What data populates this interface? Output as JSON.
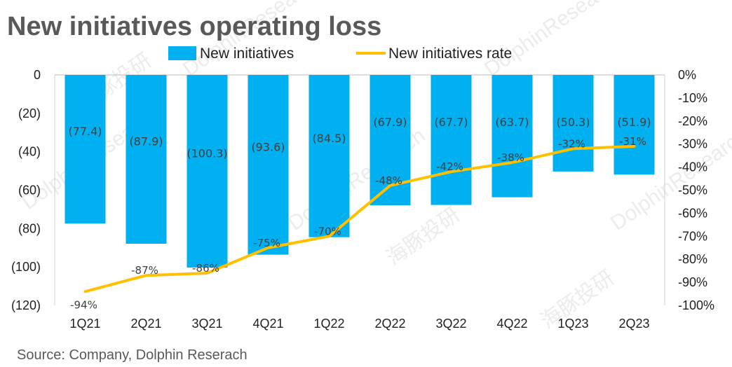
{
  "chart_data": {
    "type": "bar",
    "title": "New initiatives operating loss",
    "categories": [
      "1Q21",
      "2Q21",
      "3Q21",
      "4Q21",
      "1Q22",
      "2Q22",
      "3Q22",
      "4Q22",
      "1Q23",
      "2Q23"
    ],
    "series": [
      {
        "name": "New initiatives",
        "type": "bar",
        "axis": "left",
        "color": "#00b0f0",
        "values": [
          77.4,
          87.9,
          100.3,
          93.6,
          84.5,
          67.9,
          67.7,
          63.7,
          50.3,
          51.9
        ],
        "labels": [
          "(77.4)",
          "(87.9)",
          "(100.3)",
          "(93.6)",
          "(84.5)",
          "(67.9)",
          "(67.7)",
          "(63.7)",
          "(50.3)",
          "(51.9)"
        ]
      },
      {
        "name": "New initiatives rate",
        "type": "line",
        "axis": "right",
        "color": "#ffc000",
        "values": [
          -94,
          -87,
          -86,
          -75,
          -70,
          -48,
          -42,
          -38,
          -32,
          -31
        ],
        "labels": [
          "-94%",
          "-87%",
          "-86%",
          "-75%",
          "-70%",
          "-48%",
          "-42%",
          "-38%",
          "-32%",
          "-31%"
        ]
      }
    ],
    "y_left": {
      "ticks": [
        0,
        20,
        40,
        60,
        80,
        100,
        120
      ],
      "tick_labels": [
        "0",
        "(20)",
        "(40)",
        "(60)",
        "(80)",
        "(100)",
        "(120)"
      ],
      "ylim": [
        0,
        120
      ],
      "inverted": true
    },
    "y_right": {
      "ticks": [
        0,
        -10,
        -20,
        -30,
        -40,
        -50,
        -60,
        -70,
        -80,
        -90,
        -100
      ],
      "tick_labels": [
        "0%",
        "-10%",
        "-20%",
        "-30%",
        "-40%",
        "-50%",
        "-60%",
        "-70%",
        "-80%",
        "-90%",
        "-100%"
      ],
      "ylim": [
        -100,
        0
      ]
    },
    "legend": {
      "placement": "top-center"
    },
    "grid": false,
    "source": "Source: Company,  Dolphin Reserach",
    "watermark": "DolphinResearch",
    "watermark_cn": "海豚投研"
  }
}
